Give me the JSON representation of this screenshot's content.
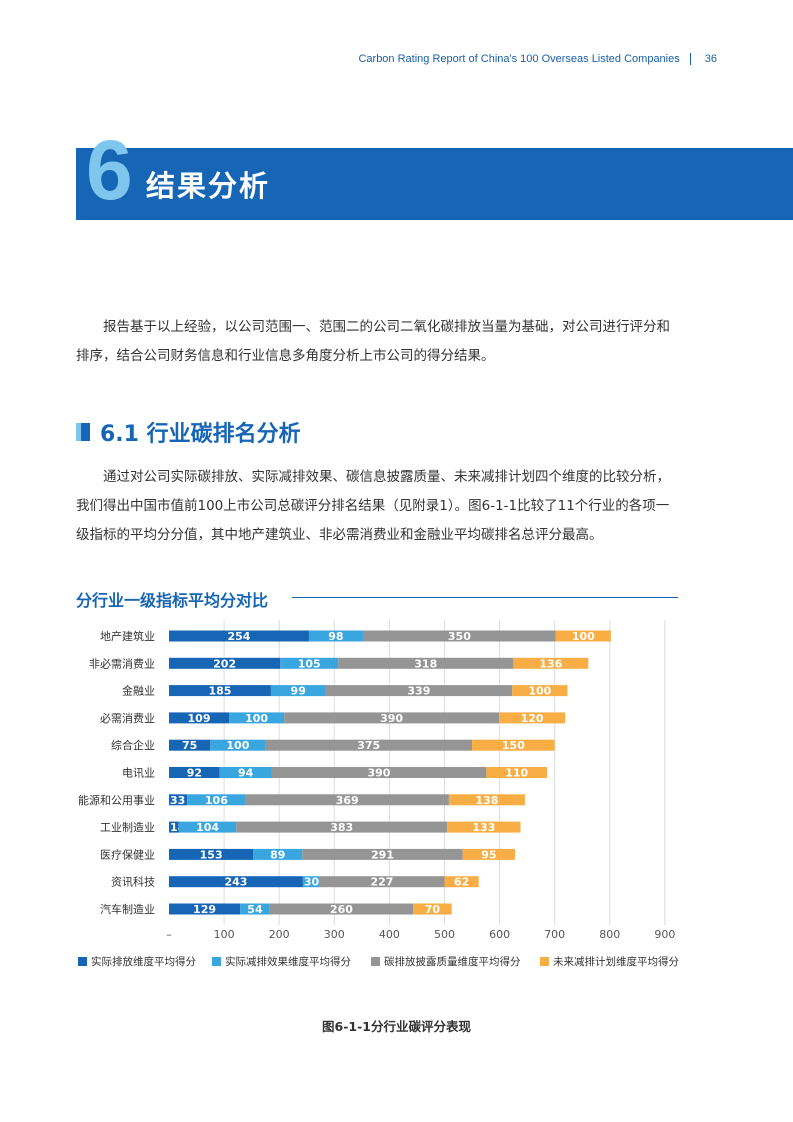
{
  "header": {
    "report_title": "Carbon Rating Report of China's 100 Overseas Listed Companies",
    "page_number": "36"
  },
  "chapter": {
    "number": "6",
    "title": "结果分析"
  },
  "intro_paragraph": "报告基于以上经验，以公司范围一、范围二的公司二氧化碳排放当量为基础，对公司进行评分和排序，结合公司财务信息和行业信息多角度分析上市公司的得分结果。",
  "section": {
    "title": "6.1 行业碳排名分析",
    "paragraph": "通过对公司实际碳排放、实际减排效果、碳信息披露质量、未来减排计划四个维度的比较分析，我们得出中国市值前100上市公司总碳评分排名结果（见附录1）。图6-1-1比较了11个行业的各项一级指标的平均分分值，其中地产建筑业、非必需消费业和金融业平均碳排名总评分最高。"
  },
  "chart_data": {
    "type": "bar",
    "orientation": "horizontal",
    "stacked": true,
    "title": "分行业一级指标平均分对比",
    "categories": [
      "地产建筑业",
      "非必需消费业",
      "金融业",
      "必需消费业",
      "综合企业",
      "电讯业",
      "能源和公用事业",
      "工业制造业",
      "医疗保健业",
      "资讯科技",
      "汽车制造业"
    ],
    "series": [
      {
        "name": "实际排放维度平均得分",
        "color": "#1766b5",
        "values": [
          254,
          202,
          185,
          109,
          75,
          92,
          33,
          18,
          153,
          243,
          129
        ]
      },
      {
        "name": "实际减排效果维度平均得分",
        "color": "#3aa6e0",
        "values": [
          98,
          105,
          99,
          100,
          100,
          94,
          106,
          104,
          89,
          30,
          54
        ]
      },
      {
        "name": "碳排放披露质量维度平均得分",
        "color": "#959595",
        "values": [
          350,
          318,
          339,
          390,
          375,
          390,
          369,
          383,
          291,
          227,
          260
        ]
      },
      {
        "name": "未来减排计划维度平均得分",
        "color": "#f8ae45",
        "values": [
          100,
          136,
          100,
          120,
          150,
          110,
          138,
          133,
          95,
          62,
          70
        ]
      }
    ],
    "x_ticks": [
      "–",
      "100",
      "200",
      "300",
      "400",
      "500",
      "600",
      "700",
      "800",
      "900"
    ],
    "xlim": [
      0,
      900
    ],
    "grid": "vertical",
    "legend": "bottom"
  },
  "caption": "图6-1-1分行业碳评分表现"
}
